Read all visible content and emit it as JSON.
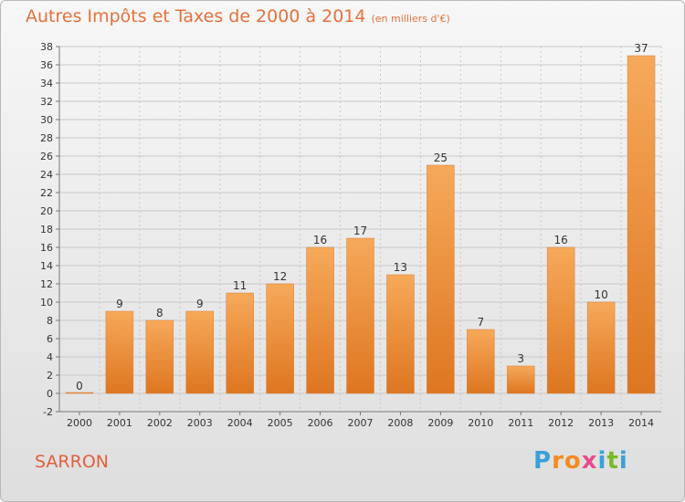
{
  "header": {
    "title": "Autres Impôts et Taxes de 2000 à 2014",
    "subtitle": "(en milliers d'€)"
  },
  "footer": {
    "location": "SARRON",
    "logo_letters": [
      "P",
      "r",
      "o",
      "x",
      "i",
      "t",
      "i"
    ],
    "logo_colors": [
      "#3aa0d8",
      "#f28c1e",
      "#f28c1e",
      "#e84c8a",
      "#3aa0d8",
      "#7ab829",
      "#3aa0d8"
    ]
  },
  "colors": {
    "bar_light": "#f6a95a",
    "bar_dark": "#de7620",
    "title": "#e4713a",
    "grid": "#c8c8c8"
  },
  "chart_data": {
    "type": "bar",
    "title": "Autres Impôts et Taxes de 2000 à 2014",
    "subtitle": "(en milliers d'€)",
    "categories": [
      "2000",
      "2001",
      "2002",
      "2003",
      "2004",
      "2005",
      "2006",
      "2007",
      "2008",
      "2009",
      "2010",
      "2011",
      "2012",
      "2013",
      "2014"
    ],
    "values": [
      0,
      9,
      8,
      9,
      11,
      12,
      16,
      17,
      13,
      25,
      7,
      3,
      16,
      10,
      37
    ],
    "ylim": [
      -2,
      38
    ],
    "yticks": [
      -2,
      0,
      2,
      4,
      6,
      8,
      10,
      12,
      14,
      16,
      18,
      20,
      22,
      24,
      26,
      28,
      30,
      32,
      34,
      36,
      38
    ],
    "grid": true,
    "xlabel": "",
    "ylabel": ""
  }
}
